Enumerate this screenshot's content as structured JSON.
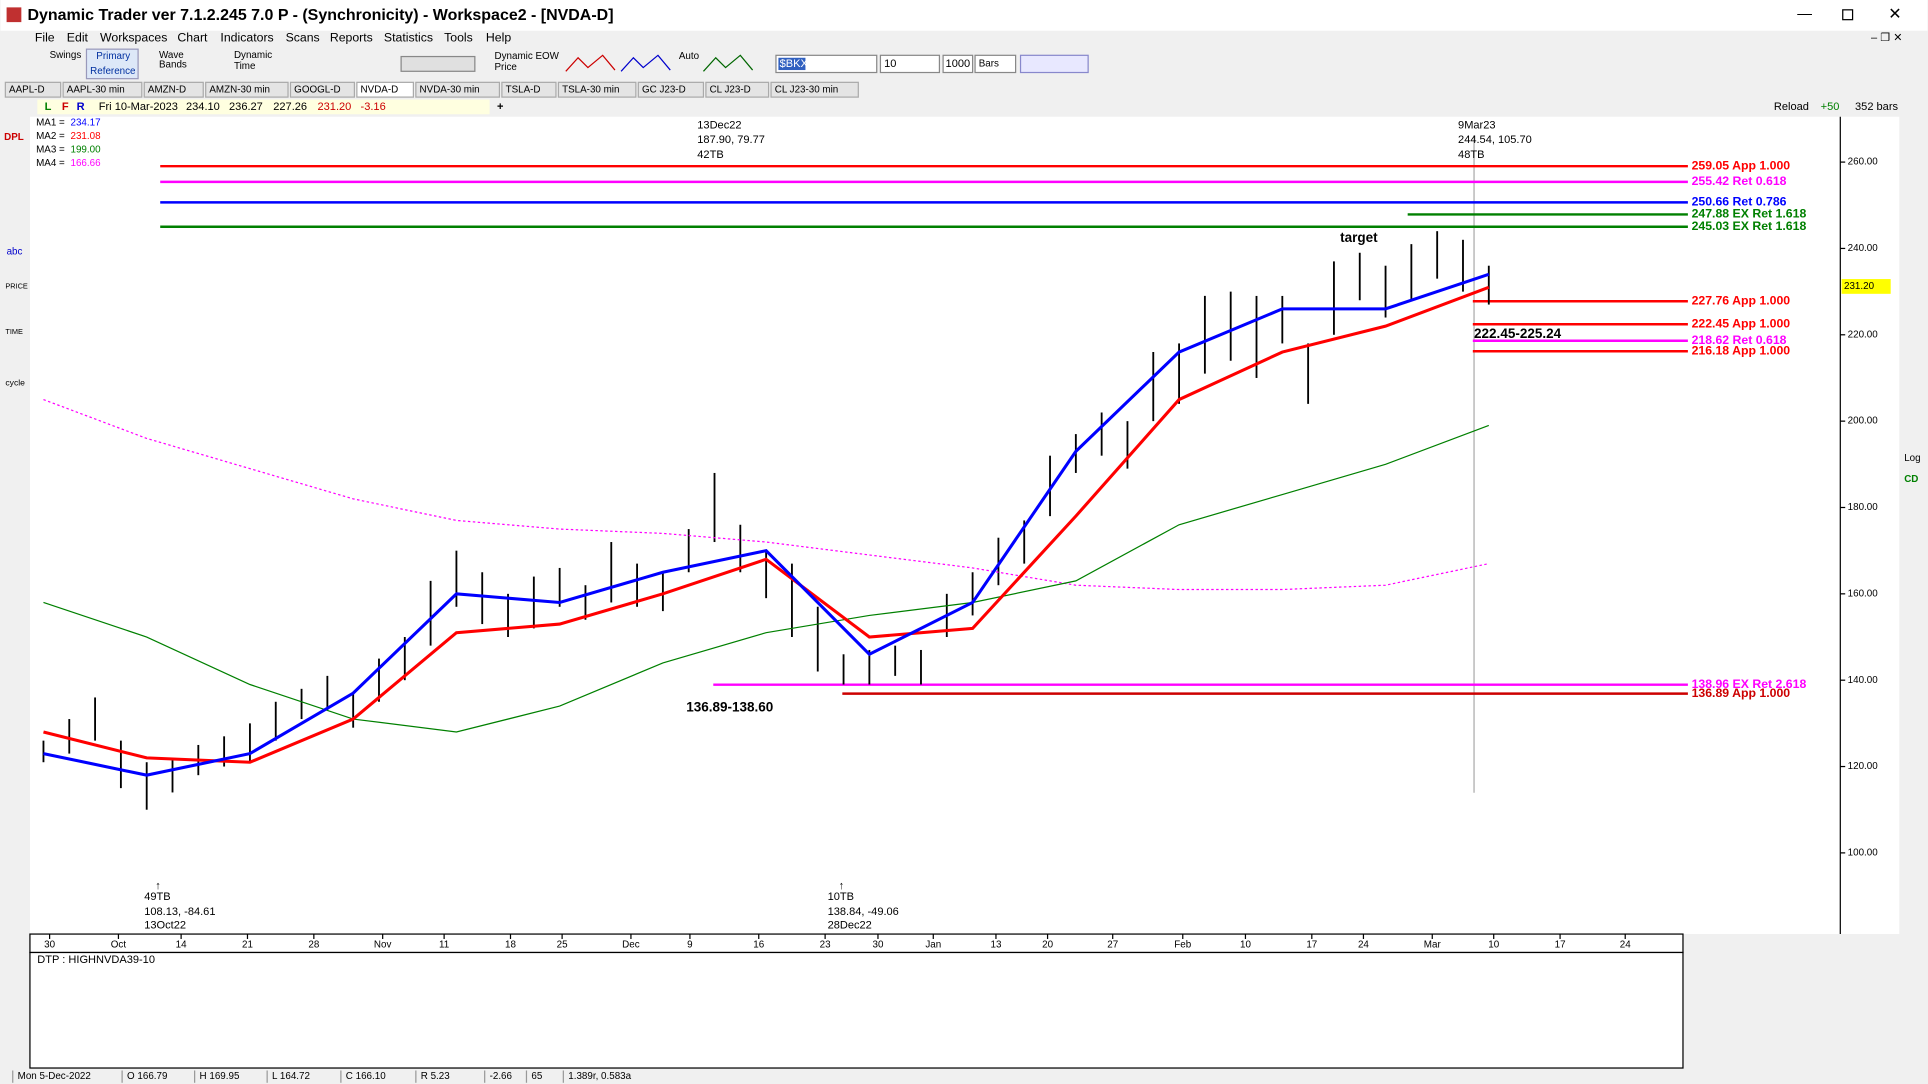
{
  "window": {
    "title": "Dynamic Trader ver 7.1.2.245 7.0 P - (Synchronicity) - Workspace2 - [NVDA-D]"
  },
  "menu": [
    "File",
    "Edit",
    "Workspaces",
    "Chart",
    "Indicators",
    "Scans",
    "Reports",
    "Statistics",
    "Tools",
    "Help"
  ],
  "toolbar": {
    "swings": "Swings",
    "primary": "Primary",
    "reference": "Reference",
    "wave": "Wave",
    "bands": "Bands",
    "dynamic": "Dynamic",
    "time": "Time",
    "dyn_eow": "Dynamic EOW",
    "price": "Price",
    "auto": "Auto",
    "symbol": "$BKX",
    "periods": "10",
    "count": "1000",
    "unit": "Bars"
  },
  "tabs": [
    "AAPL-D",
    "AAPL-30 min",
    "AMZN-D",
    "AMZN-30 min",
    "GOOGL-D",
    "NVDA-D",
    "NVDA-30 min",
    "TSLA-D",
    "TSLA-30 min",
    "GC J23-D",
    "CL J23-D",
    "CL J23-30 min"
  ],
  "info": {
    "date": "Fri 10-Mar-2023",
    "open": "234.10",
    "high": "236.27",
    "low": "227.26",
    "close": "231.20",
    "change": "-3.16",
    "reload": "Reload",
    "plus": "+50",
    "bars": "352 bars"
  },
  "ma_legend": [
    {
      "name": "MA1 =",
      "value": "234.17",
      "color": "#0000ff"
    },
    {
      "name": "MA2 =",
      "value": "231.08",
      "color": "#ff0000"
    },
    {
      "name": "MA3 =",
      "value": "199.00",
      "color": "#008000"
    },
    {
      "name": "MA4 =",
      "value": "166.66",
      "color": "#ff00ff"
    }
  ],
  "price_chart": {
    "ylim": [
      81.2,
      270.5
    ],
    "yticks": [
      {
        "value": 260,
        "label": "260.00"
      },
      {
        "value": 240,
        "label": "240.00"
      },
      {
        "value": 220,
        "label": "220.00"
      },
      {
        "value": 200,
        "label": "200.00"
      },
      {
        "value": 180,
        "label": "180.00"
      },
      {
        "value": 160,
        "label": "160.00"
      },
      {
        "value": 140,
        "label": "140.00"
      },
      {
        "value": 120,
        "label": "120.00"
      },
      {
        "value": 100,
        "label": "100.00"
      }
    ],
    "xlabels": [
      "30",
      "Oct",
      "14",
      "21",
      "28",
      "Nov",
      "11",
      "18",
      "25",
      "Dec",
      "9",
      "16",
      "23",
      "30",
      "Jan",
      "13",
      "20",
      "27",
      "Feb",
      "10",
      "17",
      "24",
      "Mar",
      "10",
      "17",
      "24"
    ],
    "last_price": "231.20",
    "bars": {
      "highs": [
        126,
        131,
        136,
        126,
        121,
        122,
        125,
        127,
        130,
        135,
        138,
        141,
        137,
        145,
        150,
        163,
        170,
        165,
        160,
        164,
        166,
        162,
        172,
        167,
        165,
        175,
        188,
        176,
        170,
        167,
        157,
        146,
        147,
        148,
        147,
        160,
        165,
        173,
        177,
        192,
        197,
        202,
        200,
        216,
        218,
        229,
        230,
        229,
        229,
        218,
        237,
        239,
        236,
        241,
        244,
        242,
        236
      ],
      "lows": [
        121,
        123,
        126,
        115,
        110,
        114,
        118,
        120,
        121,
        126,
        131,
        133,
        129,
        135,
        140,
        148,
        157,
        153,
        150,
        152,
        157,
        154,
        158,
        157,
        156,
        165,
        172,
        165,
        159,
        150,
        142,
        139,
        139,
        141,
        139,
        150,
        155,
        162,
        167,
        178,
        188,
        192,
        189,
        200,
        204,
        211,
        214,
        210,
        218,
        204,
        220,
        228,
        224,
        228,
        233,
        230,
        227
      ]
    },
    "mas": [
      {
        "color": "#0000ff",
        "values": [
          123,
          118,
          123,
          137,
          160,
          158,
          165,
          170,
          146,
          158,
          193,
          216,
          226,
          226,
          234
        ]
      },
      {
        "color": "#ff0000",
        "values": [
          128,
          122,
          121,
          131,
          151,
          153,
          160,
          168,
          150,
          152,
          178,
          205,
          216,
          222,
          231
        ]
      },
      {
        "color": "#008000",
        "values": [
          158,
          150,
          139,
          131,
          128,
          134,
          144,
          151,
          155,
          158,
          163,
          176,
          183,
          190,
          199
        ]
      },
      {
        "color": "#ff00ff",
        "values": [
          205,
          196,
          189,
          182,
          177,
          175,
          174,
          172,
          169,
          166,
          162,
          161,
          161,
          162,
          167
        ]
      }
    ],
    "levels": [
      {
        "value": 259.05,
        "label": "259.05 App 1.000",
        "color": "#ff0000"
      },
      {
        "value": 255.42,
        "label": "255.42 Ret 0.618",
        "color": "#ff00ff"
      },
      {
        "value": 250.66,
        "label": "250.66 Ret 0.786",
        "color": "#0000ff"
      },
      {
        "value": 247.88,
        "label": "247.88 EX Ret 1.618",
        "color": "#008000"
      },
      {
        "value": 245.03,
        "label": "245.03 EX Ret 1.618",
        "color": "#008000"
      },
      {
        "value": 227.76,
        "label": "227.76 App 1.000",
        "color": "#ff0000"
      },
      {
        "value": 222.45,
        "label": "222.45 App 1.000",
        "color": "#ff0000"
      },
      {
        "value": 218.62,
        "label": "218.62 Ret 0.618",
        "color": "#ff00ff"
      },
      {
        "value": 216.18,
        "label": "216.18 App 1.000",
        "color": "#ff0000"
      },
      {
        "value": 138.96,
        "label": "138.96 EX Ret 2.618",
        "color": "#ff00ff"
      },
      {
        "value": 136.89,
        "label": "136.89 App 1.000",
        "color": "#cc0000"
      }
    ],
    "annotations": {
      "dec_date": "13Dec22",
      "dec_values": "187.90, 79.77",
      "dec_tb": "42TB",
      "mar_date": "9Mar23",
      "mar_values": "244.54, 105.70",
      "mar_tb": "48TB",
      "target": "target",
      "upper_zone": "222.45-225.24",
      "lower_zone": "136.89-138.60",
      "oct_tb": "49TB",
      "oct_values": "108.13, -84.61",
      "oct_date": "13Oct22",
      "dec28_tb": "10TB",
      "dec28_values": "138.84, -49.06",
      "dec28_date": "28Dec22"
    }
  },
  "lower_pane": {
    "label": "DTP : HIGHNVDA39-10"
  },
  "status": [
    "Mon 5-Dec-2022",
    "O 166.79",
    "H 169.95",
    "L 164.72",
    "C 166.10",
    "R 5.23",
    "-2.66",
    "65",
    "1.389r, 0.583a"
  ]
}
